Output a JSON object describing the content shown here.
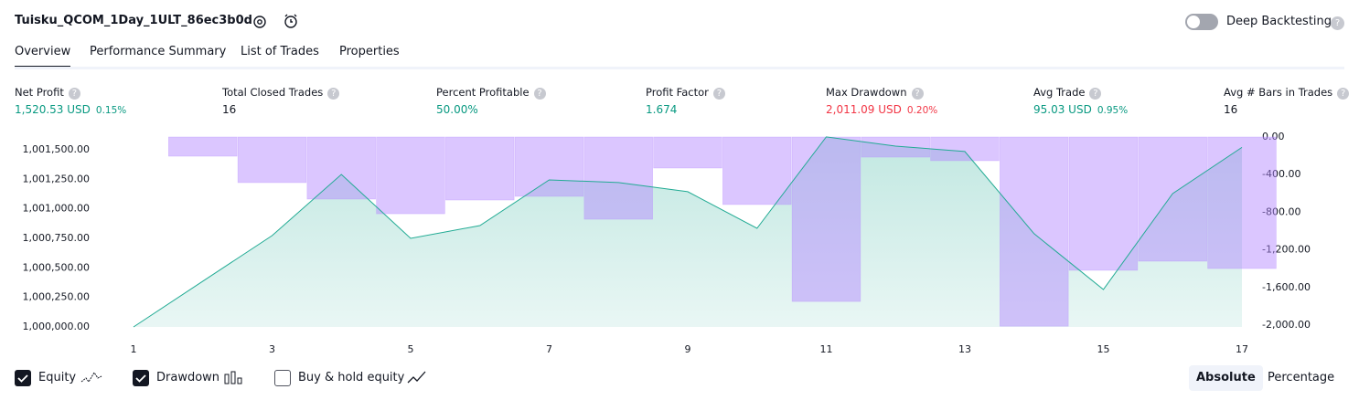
{
  "header": {
    "title": "Tuisku_QCOM_1Day_1ULT_86ec3b0d",
    "toggle_label": "Deep Backtesting",
    "deep_backtesting": false
  },
  "tabs": [
    "Overview",
    "Performance Summary",
    "List of Trades",
    "Properties"
  ],
  "active_tab": 0,
  "metrics": [
    {
      "label": "Net Profit",
      "value": "1,520.53 USD",
      "percent": "0.15%",
      "tone": "positive"
    },
    {
      "label": "Total Closed Trades",
      "value": "16",
      "tone": "neutral"
    },
    {
      "label": "Percent Profitable",
      "value": "50.00%",
      "tone": "positive"
    },
    {
      "label": "Profit Factor",
      "value": "1.674",
      "tone": "positive"
    },
    {
      "label": "Max Drawdown",
      "value": "2,011.09 USD",
      "percent": "0.20%",
      "tone": "negative"
    },
    {
      "label": "Avg Trade",
      "value": "95.03 USD",
      "percent": "0.95%",
      "tone": "positive"
    },
    {
      "label": "Avg # Bars in Trades",
      "value": "16",
      "tone": "neutral"
    }
  ],
  "chart_data": {
    "type": "combo",
    "x": [
      1,
      2,
      3,
      4,
      5,
      6,
      7,
      8,
      9,
      10,
      11,
      12,
      13,
      14,
      15,
      16,
      17
    ],
    "xlim": [
      0.5,
      17.5
    ],
    "xticks": [
      1,
      3,
      5,
      7,
      9,
      11,
      13,
      15,
      17
    ],
    "ylim": [
      1000000,
      1001608
    ],
    "yticks": [
      {
        "value": 1000000,
        "label": "1,000,000.00"
      },
      {
        "value": 1000250,
        "label": "1,000,250.00"
      },
      {
        "value": 1000500,
        "label": "1,000,500.00"
      },
      {
        "value": 1000750,
        "label": "1,000,750.00"
      },
      {
        "value": 1001000,
        "label": "1,001,000.00"
      },
      {
        "value": 1001250,
        "label": "1,001,250.00"
      },
      {
        "value": 1001500,
        "label": "1,001,500.00"
      }
    ],
    "y2lim": [
      -2019,
      0
    ],
    "y2ticks": [
      {
        "value": 0,
        "label": "0.00"
      },
      {
        "value": -400,
        "label": "-400.00"
      },
      {
        "value": -800,
        "label": "-800.00"
      },
      {
        "value": -1200,
        "label": "-1,200.00"
      },
      {
        "value": -1600,
        "label": "-1,600.00"
      },
      {
        "value": -2000,
        "label": "-2,000.00"
      }
    ],
    "series": [
      {
        "name": "Equity",
        "type": "area",
        "color": "#22ab94",
        "checked": true,
        "values": [
          1000000,
          1000387,
          1000773,
          1001291,
          1000750,
          1000858,
          1001245,
          1001222,
          1001145,
          1000835,
          1001609,
          1001531,
          1001485,
          1000789,
          1000317,
          1001129,
          1001520
        ]
      },
      {
        "name": "Drawdown",
        "type": "bar",
        "axis": "y2",
        "color": "#b388ff",
        "checked": true,
        "values": [
          0,
          -204,
          -485,
          -660,
          -816,
          -670,
          -631,
          -874,
          -330,
          -718,
          -1748,
          -214,
          -252,
          -2011,
          -1417,
          -1320,
          -1398
        ]
      }
    ]
  },
  "controls": {
    "buy_hold_label": "Buy & hold equity",
    "buy_hold_checked": false,
    "modes": [
      "Absolute",
      "Percentage"
    ],
    "active_mode": 0
  }
}
